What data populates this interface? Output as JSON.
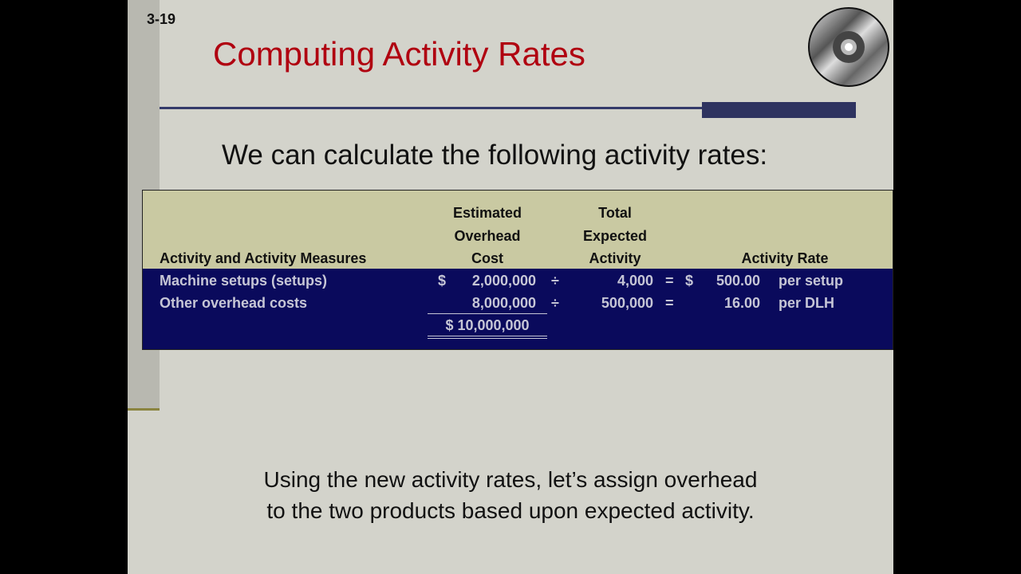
{
  "slide": {
    "number": "3-19",
    "title": "Computing Activity Rates",
    "subtitle": "We can calculate the following activity rates:",
    "table": {
      "headers": {
        "activity": "Activity and Activity Measures",
        "cost": [
          "Estimated",
          "Overhead",
          "Cost"
        ],
        "expected": [
          "Total",
          "Expected",
          "Activity"
        ],
        "rate": "Activity Rate"
      },
      "rows": [
        {
          "label": "Machine setups (setups)",
          "cost_currency": "$",
          "cost": "2,000,000",
          "div": "÷",
          "activity": "4,000",
          "eq": "=",
          "rate_currency": "$",
          "rate": "500.00",
          "unit": "per setup"
        },
        {
          "label": "Other overhead costs",
          "cost_currency": "",
          "cost": "8,000,000",
          "div": "÷",
          "activity": "500,000",
          "eq": "=",
          "rate_currency": "",
          "rate": "16.00",
          "unit": "per DLH"
        }
      ],
      "total": "$ 10,000,000"
    },
    "footer": [
      "Using the new activity rates, let’s assign overhead",
      "to the two products based upon expected activity."
    ],
    "colors": {
      "title": "#b00010",
      "table_header": "#c9c9a2",
      "table_body": "#0a0a5c",
      "accent_bar": "#2e3360"
    },
    "icon": "cd-disc-icon"
  }
}
